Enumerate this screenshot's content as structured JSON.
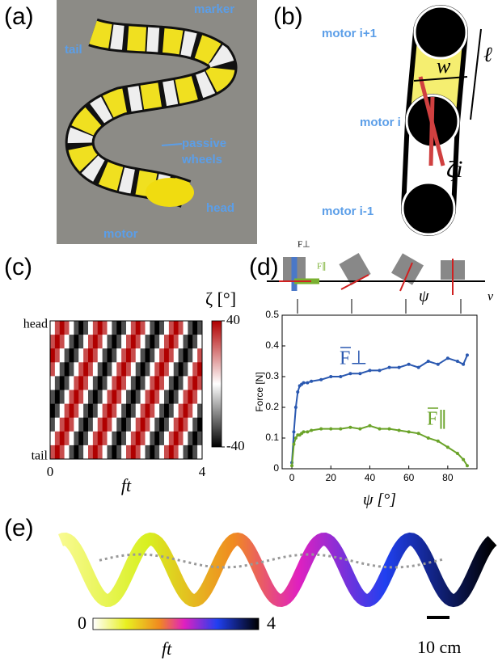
{
  "panel_labels": [
    "(a)",
    "(b)",
    "(c)",
    "(d)",
    "(e)"
  ],
  "panel_a": {
    "marker": "marker",
    "tail": "tail",
    "passive_wheels": [
      "passive",
      "wheels"
    ],
    "head": "head",
    "motor": "motor"
  },
  "panel_b": {
    "motor_upper": "motor i+1",
    "motor_mid": "motor i",
    "motor_lower": "motor i-1",
    "width": "w",
    "length": "ℓ",
    "angle": "ζi"
  },
  "chart_data": [
    {
      "type": "heatmap",
      "xlabel": "ft",
      "xlim": [
        0,
        4
      ],
      "xticks": [
        0,
        4
      ],
      "row_labels": [
        "head",
        "tail"
      ],
      "zlabel": "ζ [°]",
      "zlim": [
        -40,
        40
      ],
      "zticks": [
        40,
        -40
      ],
      "colormap": [
        "#000000",
        "#ffffff",
        "#b00000"
      ],
      "values": [
        [
          0,
          28,
          40,
          28,
          0,
          -28,
          -40,
          -28,
          0,
          28,
          40,
          28,
          0,
          -28,
          -40,
          -28,
          0,
          28,
          40,
          28,
          0,
          -28,
          -40,
          -28,
          0,
          28,
          40,
          28,
          0,
          -28,
          -40,
          -28
        ],
        [
          28,
          40,
          28,
          0,
          -28,
          -40,
          -28,
          0,
          28,
          40,
          28,
          0,
          -28,
          -40,
          -28,
          0,
          28,
          40,
          28,
          0,
          -28,
          -40,
          -28,
          0,
          28,
          40,
          28,
          0,
          -28,
          -40,
          -28,
          0
        ],
        [
          40,
          28,
          0,
          -28,
          -40,
          -28,
          0,
          28,
          40,
          28,
          0,
          -28,
          -40,
          -28,
          0,
          28,
          40,
          28,
          0,
          -28,
          -40,
          -28,
          0,
          28,
          40,
          28,
          0,
          -28,
          -40,
          -28,
          0,
          28
        ],
        [
          28,
          0,
          -28,
          -40,
          -28,
          0,
          28,
          40,
          28,
          0,
          -28,
          -40,
          -28,
          0,
          28,
          40,
          28,
          0,
          -28,
          -40,
          -28,
          0,
          28,
          40,
          28,
          0,
          -28,
          -40,
          -28,
          0,
          28,
          40
        ],
        [
          0,
          -28,
          -40,
          -28,
          0,
          28,
          40,
          28,
          0,
          -28,
          -40,
          -28,
          0,
          28,
          40,
          28,
          0,
          -28,
          -40,
          -28,
          0,
          28,
          40,
          28,
          0,
          -28,
          -40,
          -28,
          0,
          28,
          40,
          28
        ],
        [
          -28,
          -40,
          -28,
          0,
          28,
          40,
          28,
          0,
          -28,
          -40,
          -28,
          0,
          28,
          40,
          28,
          0,
          -28,
          -40,
          -28,
          0,
          28,
          40,
          28,
          0,
          -28,
          -40,
          -28,
          0,
          28,
          40,
          28,
          0
        ],
        [
          -40,
          -28,
          0,
          28,
          40,
          28,
          0,
          -28,
          -40,
          -28,
          0,
          28,
          40,
          28,
          0,
          -28,
          -40,
          -28,
          0,
          28,
          40,
          28,
          0,
          -28,
          -40,
          -28,
          0,
          28,
          40,
          28,
          0,
          -28
        ],
        [
          -28,
          0,
          28,
          40,
          28,
          0,
          -28,
          -40,
          -28,
          0,
          28,
          40,
          28,
          0,
          -28,
          -40,
          -28,
          0,
          28,
          40,
          28,
          0,
          -28,
          -40,
          -28,
          0,
          28,
          40,
          28,
          0,
          -28,
          -40
        ],
        [
          0,
          28,
          40,
          28,
          0,
          -28,
          -40,
          -28,
          0,
          28,
          40,
          28,
          0,
          -28,
          -40,
          -28,
          0,
          28,
          40,
          28,
          0,
          -28,
          -40,
          -28,
          0,
          28,
          40,
          28,
          0,
          -28,
          -40,
          -28
        ],
        [
          28,
          40,
          28,
          0,
          -28,
          -40,
          -28,
          0,
          28,
          40,
          28,
          0,
          -28,
          -40,
          -28,
          0,
          28,
          40,
          28,
          0,
          -28,
          -40,
          -28,
          0,
          28,
          40,
          28,
          0,
          -28,
          -40,
          -28,
          0
        ]
      ]
    },
    {
      "type": "line",
      "xlabel": "ψ [°]",
      "ylabel": "Force [N]",
      "xlim": [
        -5,
        95
      ],
      "xticks": [
        0,
        20,
        40,
        60,
        80
      ],
      "ylim": [
        0,
        0.5
      ],
      "yticks": [
        0,
        0.1,
        0.2,
        0.3,
        0.4,
        0.5
      ],
      "x": [
        0,
        1,
        2,
        3,
        4,
        5,
        6,
        8,
        10,
        15,
        20,
        25,
        30,
        35,
        40,
        45,
        50,
        55,
        60,
        65,
        70,
        75,
        80,
        85,
        88,
        90
      ],
      "series": [
        {
          "name": "F⊥",
          "color": "#2a58b0",
          "values": [
            0.02,
            0.12,
            0.2,
            0.25,
            0.27,
            0.275,
            0.28,
            0.28,
            0.285,
            0.29,
            0.3,
            0.3,
            0.31,
            0.31,
            0.32,
            0.32,
            0.33,
            0.33,
            0.34,
            0.33,
            0.35,
            0.34,
            0.36,
            0.35,
            0.34,
            0.37
          ]
        },
        {
          "name": "F∥",
          "color": "#6aa329",
          "values": [
            0.01,
            0.08,
            0.1,
            0.11,
            0.11,
            0.115,
            0.12,
            0.12,
            0.125,
            0.13,
            0.13,
            0.13,
            0.135,
            0.13,
            0.14,
            0.13,
            0.13,
            0.125,
            0.12,
            0.115,
            0.1,
            0.09,
            0.07,
            0.05,
            0.03,
            0.01
          ]
        }
      ]
    }
  ],
  "panel_d": {
    "f_perp": "F⊥",
    "f_par": "F∥",
    "psi": "ψ",
    "v": "v"
  },
  "panel_e": {
    "colorbar_ticks": [
      0,
      4
    ],
    "colorbar_label": "ft",
    "scale_label": "10 cm"
  }
}
